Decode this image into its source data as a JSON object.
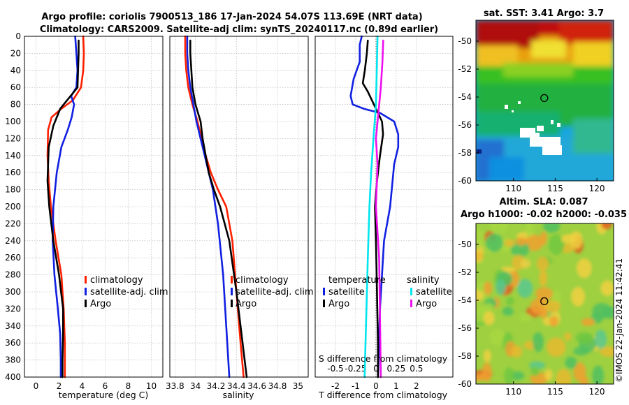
{
  "title": {
    "line1": "Argo profile: coriolis 7900513_186 17-Jan-2024 54.07S 113.69E (NRT data)",
    "line2": "Climatology: CARS2009. Satellite-adj clim: synTS_20240117.nc (0.89d earlier)"
  },
  "colors": {
    "climatology": "#ff2000",
    "satellite": "#1020e0",
    "argo": "#000000",
    "sal_satellite": "#00e5ee",
    "sal_argo": "#ee10ee",
    "grid": "#b0b0b0"
  },
  "chart_data": [
    {
      "type": "line",
      "name": "temperature",
      "xlabel": "temperature (deg C)",
      "ylabel": "",
      "xlim": [
        -1,
        11
      ],
      "ylim": [
        400,
        0
      ],
      "xticks": [
        "0",
        "2",
        "4",
        "6",
        "8",
        "10"
      ],
      "yticks": [
        "0",
        "20",
        "40",
        "60",
        "80",
        "100",
        "120",
        "140",
        "160",
        "180",
        "200",
        "220",
        "240",
        "260",
        "280",
        "300",
        "320",
        "340",
        "360",
        "380",
        "400"
      ],
      "legend": [
        "climatology",
        "satellite-adj. clim",
        "Argo"
      ],
      "series": [
        {
          "name": "climatology",
          "x": [
            4.1,
            4.15,
            4.1,
            3.9,
            3.2,
            2.2,
            1.35,
            1.05,
            1.0,
            1.1,
            1.3,
            1.7,
            2.2,
            2.4,
            2.5,
            2.5
          ],
          "y": [
            0,
            20,
            40,
            60,
            75,
            85,
            95,
            110,
            140,
            170,
            200,
            240,
            280,
            320,
            360,
            400
          ]
        },
        {
          "name": "satellite-adj. clim",
          "x": [
            3.4,
            3.5,
            3.6,
            3.5,
            3.05,
            3.3,
            3.1,
            2.75,
            2.2,
            1.8,
            1.5,
            1.45,
            1.6,
            1.9,
            2.1,
            2.15,
            2.15
          ],
          "y": [
            0,
            20,
            40,
            60,
            70,
            80,
            95,
            110,
            130,
            160,
            200,
            240,
            280,
            320,
            350,
            380,
            400
          ]
        },
        {
          "name": "Argo",
          "x": [
            3.7,
            3.7,
            3.65,
            3.6,
            3.0,
            2.1,
            1.5,
            1.1,
            1.05,
            1.0,
            1.15,
            1.5,
            2.0,
            2.35,
            2.35,
            2.3,
            2.3
          ],
          "y": [
            5,
            20,
            40,
            60,
            70,
            85,
            105,
            130,
            150,
            170,
            200,
            240,
            280,
            320,
            350,
            380,
            400
          ]
        }
      ]
    },
    {
      "type": "line",
      "name": "salinity",
      "xlabel": "salinity",
      "ylabel": "",
      "xlim": [
        33.75,
        35.1
      ],
      "ylim": [
        400,
        0
      ],
      "xticks": [
        "33.8",
        "34",
        "34.2",
        "34.4",
        "34.6",
        "34.8",
        "35"
      ],
      "legend": [
        "climatology",
        "satellite-adj. clim",
        "Argo"
      ],
      "series": [
        {
          "name": "climatology",
          "x": [
            33.9,
            33.9,
            33.91,
            33.93,
            33.97,
            34.02,
            34.06,
            34.1,
            34.15,
            34.22,
            34.3,
            34.36,
            34.4,
            34.44,
            34.47
          ],
          "y": [
            0,
            20,
            40,
            60,
            80,
            100,
            120,
            140,
            160,
            180,
            200,
            240,
            300,
            360,
            400
          ]
        },
        {
          "name": "satellite-adj. clim",
          "x": [
            33.92,
            33.92,
            33.93,
            33.95,
            33.98,
            34.01,
            34.05,
            34.09,
            34.13,
            34.17,
            34.22,
            34.27,
            34.3,
            34.33
          ],
          "y": [
            0,
            20,
            40,
            60,
            80,
            100,
            120,
            140,
            160,
            180,
            220,
            280,
            340,
            400
          ]
        },
        {
          "name": "Argo",
          "x": [
            33.95,
            33.95,
            33.96,
            33.97,
            34.0,
            34.05,
            34.07,
            34.1,
            34.13,
            34.18,
            34.24,
            34.33,
            34.4,
            34.46,
            34.5
          ],
          "y": [
            5,
            20,
            40,
            60,
            80,
            100,
            120,
            140,
            160,
            180,
            200,
            240,
            300,
            360,
            400
          ]
        }
      ]
    },
    {
      "type": "line",
      "name": "difference",
      "xlabel": "T difference from climatology",
      "top_label": "S difference from climatology",
      "xlim": [
        -3,
        3.8
      ],
      "ylim": [
        400,
        0
      ],
      "xticks": [
        "-2",
        "-1",
        "0",
        "1",
        "2"
      ],
      "top_ticks": [
        "-0.5",
        "-0.25",
        "0",
        "0.25",
        "0.5"
      ],
      "legend_temperature_header": "temperature",
      "legend_salinity_header": "salinity",
      "legend": [
        "satellite",
        "Argo",
        "satellite",
        "Argo"
      ],
      "series": [
        {
          "name": "T satellite",
          "x": [
            -0.7,
            -0.8,
            -0.8,
            -1.1,
            -1.25,
            -1.15,
            -0.6,
            0.2,
            0.9,
            1.1,
            1.1,
            0.9,
            0.7,
            0.4,
            0.3,
            0.2,
            0.15,
            0.1
          ],
          "y": [
            0,
            10,
            30,
            50,
            70,
            80,
            85,
            90,
            100,
            115,
            130,
            150,
            200,
            240,
            280,
            320,
            360,
            400
          ]
        },
        {
          "name": "T Argo",
          "x": [
            -0.4,
            -0.45,
            -0.55,
            -0.65,
            -0.4,
            0.0,
            0.3,
            0.35,
            0.2,
            0.05,
            -0.05,
            0.0,
            0.05,
            0.1,
            0.1
          ],
          "y": [
            5,
            20,
            40,
            55,
            65,
            85,
            100,
            115,
            140,
            170,
            200,
            240,
            300,
            360,
            400
          ]
        },
        {
          "name": "S satellite",
          "x": [
            0.02,
            0.01,
            0.0,
            -0.03,
            -0.06,
            -0.08,
            -0.1,
            -0.12,
            -0.14
          ],
          "y": [
            0,
            40,
            80,
            120,
            160,
            200,
            260,
            330,
            400
          ]
        },
        {
          "name": "S Argo",
          "x": [
            0.09,
            0.08,
            0.06,
            0.03,
            0.0,
            0.02,
            0.0,
            0.04,
            0.05,
            0.06
          ],
          "y": [
            5,
            30,
            60,
            90,
            120,
            150,
            200,
            260,
            330,
            400
          ]
        }
      ]
    },
    {
      "type": "heatmap",
      "name": "sst-map",
      "title": "sat. SST: 3.41  Argo: 3.7",
      "xticks": [
        "110",
        "115",
        "120"
      ],
      "yticks": [
        "-50",
        "-52",
        "-54",
        "-56",
        "-58",
        "-60"
      ],
      "xlim": [
        105.5,
        122
      ],
      "ylim": [
        -60,
        -48.5
      ],
      "profile_position": {
        "lon": 113.69,
        "lat": -54.07
      }
    },
    {
      "type": "heatmap",
      "name": "sla-map",
      "title_line1": "Altim. SLA: 0.087",
      "title_line2": "Argo h1000: -0.02 h2000: -0.035",
      "xticks": [
        "110",
        "115",
        "120"
      ],
      "yticks": [
        "-50",
        "-52",
        "-54",
        "-56",
        "-58",
        "-60"
      ],
      "xlim": [
        105.5,
        122
      ],
      "ylim": [
        -60,
        -48.5
      ],
      "profile_position": {
        "lon": 113.69,
        "lat": -54.07
      }
    }
  ],
  "credit": "©IMOS 22-Jan-2024 11:42:41"
}
